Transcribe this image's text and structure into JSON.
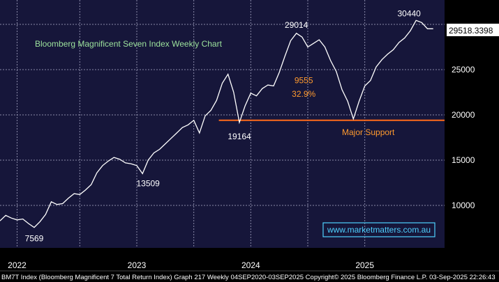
{
  "colors": {
    "background": "#000000",
    "plot_background": "#16163a",
    "grid": "#8a8aa8",
    "price": "#ffffff",
    "title": "#9de39d",
    "annotation_orange": "#ff9a2e",
    "support_line": "#ff6a1a",
    "watermark_border": "#4fd1ff",
    "watermark_text": "#4fd1ff",
    "footer_text": "#ffffff",
    "axis_text": "#ffffff"
  },
  "chart_data": {
    "type": "line",
    "title": "Bloomberg Magnificent Seven Index Weekly Chart",
    "xlabel": "",
    "ylabel": "",
    "ylim": [
      5000,
      32000
    ],
    "y_ticks": [
      10000,
      15000,
      20000,
      25000
    ],
    "y_tick_labels": [
      "10000",
      "15000",
      "20000",
      "25000"
    ],
    "x_ticks": [
      "2022",
      "2023",
      "2024",
      "2025"
    ],
    "x_tick_positions": [
      2021.95,
      2023.0,
      2024.0,
      2025.0
    ],
    "xlim": [
      2021.8,
      2025.7
    ],
    "grid": true,
    "series": [
      {
        "x": [
          2021.8,
          2021.85,
          2021.9,
          2021.95,
          2022.0,
          2022.05,
          2022.1,
          2022.15,
          2022.2,
          2022.25,
          2022.3,
          2022.35,
          2022.4,
          2022.45,
          2022.5,
          2022.55,
          2022.6,
          2022.65,
          2022.7,
          2022.75,
          2022.8,
          2022.85,
          2022.9,
          2022.95,
          2023.0,
          2023.05,
          2023.1,
          2023.15,
          2023.2,
          2023.25,
          2023.3,
          2023.35,
          2023.4,
          2023.45,
          2023.5,
          2023.55,
          2023.6,
          2023.65,
          2023.7,
          2023.75,
          2023.8,
          2023.85,
          2023.9,
          2023.95,
          2024.0,
          2024.05,
          2024.1,
          2024.15,
          2024.2,
          2024.25,
          2024.3,
          2024.35,
          2024.4,
          2024.45,
          2024.5,
          2024.55,
          2024.6,
          2024.65,
          2024.7,
          2024.75,
          2024.8,
          2024.85,
          2024.9,
          2024.95,
          2025.0,
          2025.05,
          2025.1,
          2025.15,
          2025.2,
          2025.25,
          2025.3,
          2025.35,
          2025.4,
          2025.45,
          2025.5,
          2025.55,
          2025.6
        ],
        "y": [
          8300,
          8900,
          8600,
          8400,
          8500,
          8000,
          7569,
          8200,
          9000,
          10400,
          10100,
          10200,
          10800,
          11300,
          11200,
          11700,
          12300,
          13600,
          14400,
          14900,
          15300,
          15100,
          14700,
          14600,
          14400,
          13509,
          15000,
          15800,
          16200,
          16800,
          17400,
          18000,
          18600,
          18900,
          19400,
          18000,
          19900,
          20500,
          21600,
          23500,
          24500,
          22500,
          19164,
          21000,
          22400,
          22100,
          22900,
          23300,
          23200,
          24700,
          26500,
          28200,
          29014,
          28600,
          27500,
          27900,
          28300,
          27500,
          26000,
          24800,
          22800,
          21500,
          19555,
          21500,
          23200,
          23800,
          25300,
          26100,
          26700,
          27200,
          28000,
          28500,
          29300,
          30440,
          30200,
          29518.3398,
          29518.3398
        ]
      }
    ],
    "reference_lines": [
      {
        "y": 19400,
        "label": "Major Support"
      }
    ],
    "annotations": [
      {
        "text": "7569",
        "x": 2022.1,
        "y": 7569
      },
      {
        "text": "13509",
        "x": 2023.05,
        "y": 13509
      },
      {
        "text": "19164",
        "x": 2023.9,
        "y": 19164
      },
      {
        "text": "29014",
        "x": 2024.4,
        "y": 29014
      },
      {
        "text": "9555",
        "x": 2024.55,
        "y": 23500
      },
      {
        "text": "32.9%",
        "x": 2024.55,
        "y": 22000
      },
      {
        "text": "30440",
        "x": 2025.45,
        "y": 30440
      }
    ],
    "last_value_label": "29518.3398",
    "last_value": 29518.3398
  },
  "watermark": "www.marketmatters.com.au",
  "footer": "BM7T Index (Bloomberg Magnificent 7 Total Return Index) Graph 217  Weekly 04SEP2020-03SEP2025 Copyright© 2025 Bloomberg Finance L.P.  03-Sep-2025 22:26:43"
}
